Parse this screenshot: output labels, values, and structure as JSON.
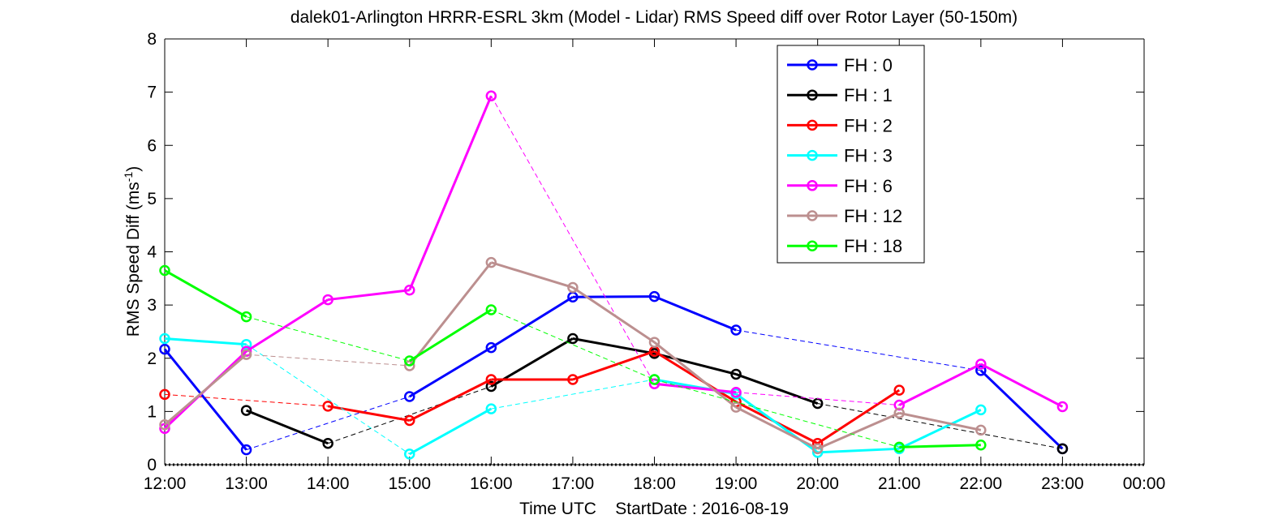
{
  "chart_data": {
    "type": "line",
    "title": "dalek01-Arlington HRRR-ESRL 3km (Model - Lidar) RMS Speed diff over Rotor Layer (50-150m)",
    "xlabel": "Time UTC    StartDate : 2016-08-19",
    "ylabel": "RMS Speed Diff (ms",
    "ylabel_sup": "-1",
    "ylabel_end": ")",
    "x_ticks": [
      "12:00",
      "13:00",
      "14:00",
      "15:00",
      "16:00",
      "17:00",
      "18:00",
      "19:00",
      "20:00",
      "21:00",
      "22:00",
      "23:00",
      "00:00"
    ],
    "y_ticks": [
      "0",
      "1",
      "2",
      "3",
      "4",
      "5",
      "6",
      "7",
      "8"
    ],
    "xlim": [
      12,
      24
    ],
    "ylim": [
      0,
      8
    ],
    "legend_position": "top-right",
    "series": [
      {
        "name": "FH : 0",
        "color": "#0000ff",
        "x": [
          12,
          13,
          15,
          16,
          17,
          18,
          19,
          22,
          23
        ],
        "y": [
          2.17,
          0.28,
          1.28,
          2.2,
          3.15,
          3.16,
          2.53,
          1.77,
          0.3
        ]
      },
      {
        "name": "FH : 1",
        "color": "#000000",
        "x": [
          13,
          14,
          16,
          17,
          18,
          19,
          20,
          23
        ],
        "y": [
          1.02,
          0.4,
          1.47,
          2.37,
          2.09,
          1.7,
          1.15,
          0.3
        ]
      },
      {
        "name": "FH : 2",
        "color": "#ff0000",
        "x": [
          12,
          14,
          15,
          16,
          17,
          18,
          19,
          20,
          21
        ],
        "y": [
          1.32,
          1.1,
          0.83,
          1.6,
          1.6,
          2.13,
          1.18,
          0.4,
          1.4
        ]
      },
      {
        "name": "FH : 3",
        "color": "#00ffff",
        "x": [
          12,
          13,
          15,
          16,
          18,
          19,
          20,
          21,
          22
        ],
        "y": [
          2.37,
          2.26,
          0.2,
          1.05,
          1.6,
          1.33,
          0.23,
          0.3,
          1.03
        ]
      },
      {
        "name": "FH : 6",
        "color": "#ff00ff",
        "x": [
          12,
          13,
          14,
          15,
          16,
          18,
          19,
          21,
          22,
          23
        ],
        "y": [
          0.68,
          2.13,
          3.1,
          3.28,
          6.93,
          1.52,
          1.36,
          1.12,
          1.89,
          1.09
        ]
      },
      {
        "name": "FH : 12",
        "color": "#bc8f8f",
        "x": [
          12,
          13,
          15,
          16,
          17,
          18,
          19,
          20,
          21,
          22
        ],
        "y": [
          0.75,
          2.07,
          1.86,
          3.8,
          3.33,
          2.3,
          1.08,
          0.3,
          0.97,
          0.65
        ]
      },
      {
        "name": "FH : 18",
        "color": "#00ff00",
        "x": [
          12,
          13,
          15,
          16,
          18,
          21,
          22
        ],
        "y": [
          3.65,
          2.78,
          1.95,
          2.91,
          1.6,
          0.33,
          0.37
        ]
      }
    ],
    "reference_curve": {
      "style": "dotted",
      "color": "#000000",
      "x": [
        12.0,
        12.5,
        13.0,
        13.2,
        13.5,
        14.0,
        14.5,
        15.0,
        15.5,
        16.0,
        16.5,
        17.0,
        17.5,
        18.0,
        18.5,
        19.0,
        19.5,
        20.0,
        20.5,
        21.0,
        21.5,
        22.0,
        22.5,
        23.0,
        23.5,
        24.0
      ],
      "y": [
        0.0,
        0.0,
        0.0,
        0.0,
        0.0,
        0.0,
        0.0,
        0.0,
        0.0,
        0.0,
        0.0,
        0.0,
        0.0,
        0.0,
        0.0,
        0.0,
        0.0,
        0.0,
        0.0,
        0.0,
        0.0,
        0.0,
        0.0,
        0.0,
        0.0,
        0.0
      ]
    }
  }
}
